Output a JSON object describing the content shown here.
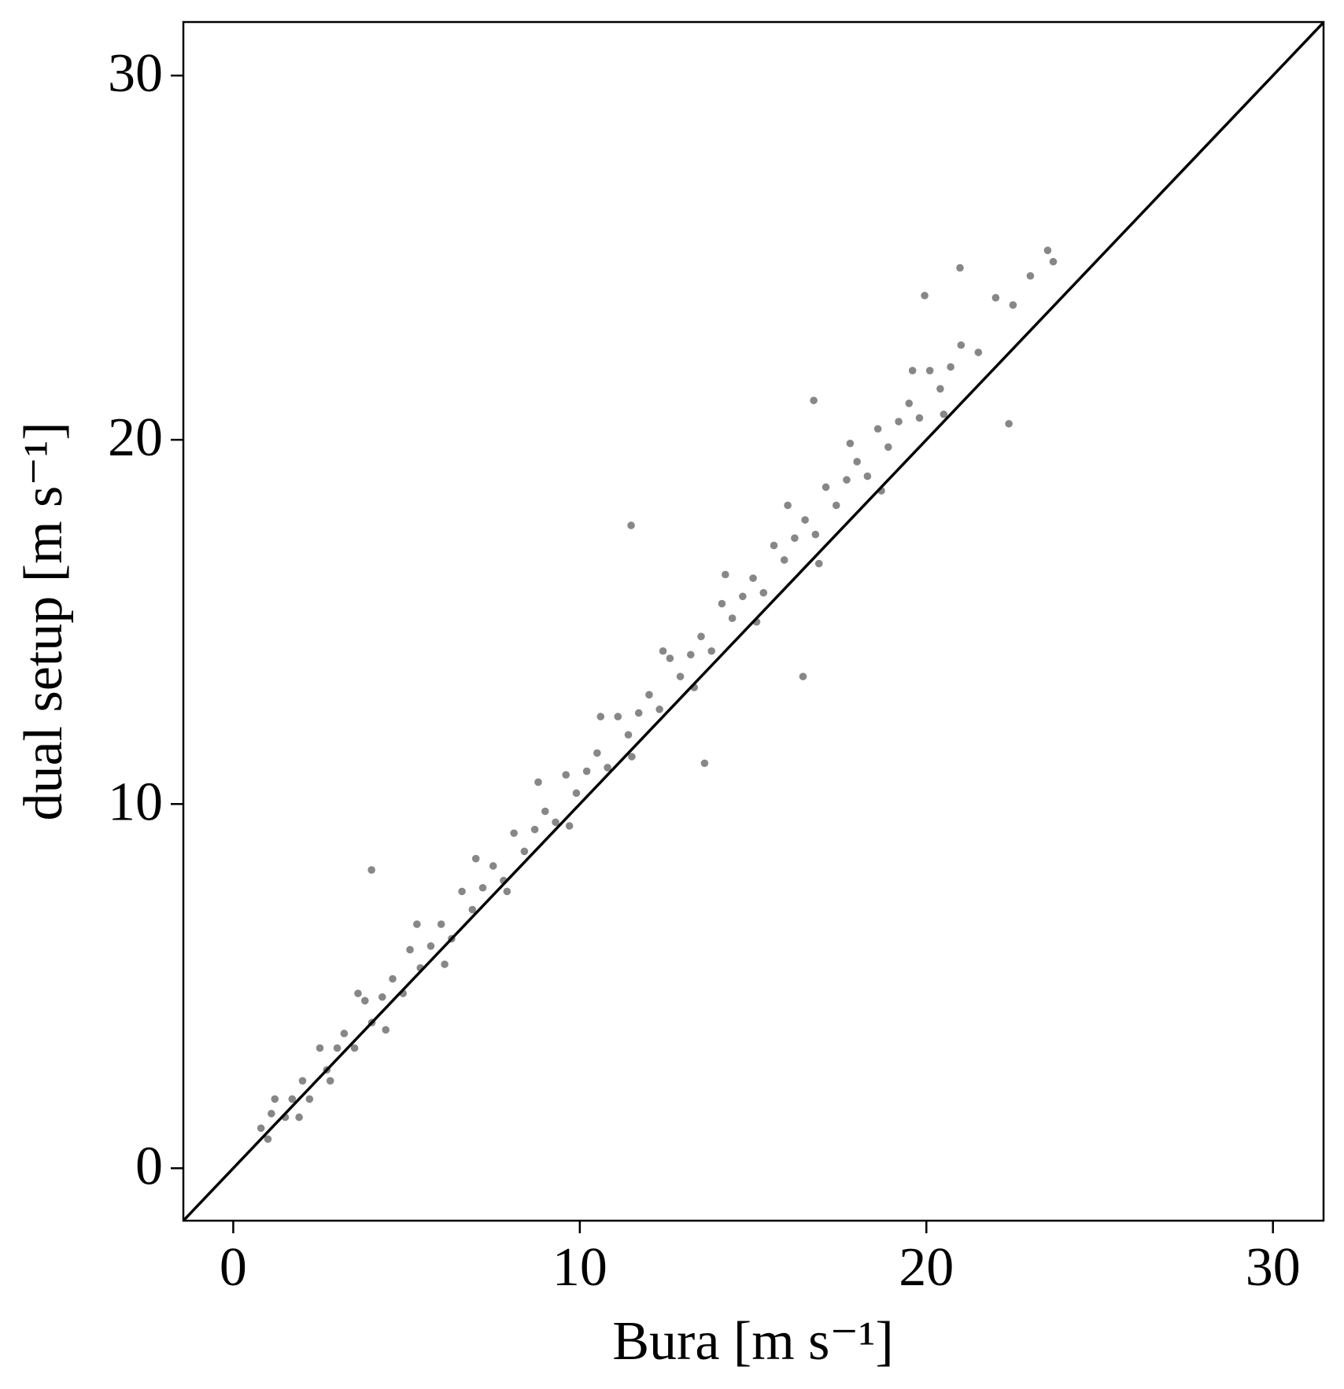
{
  "chart_data": {
    "type": "scatter",
    "x_label": "Bura [m s⁻¹]",
    "y_label": "dual setup [m s⁻¹]",
    "xlim": [
      -1.44,
      31.46
    ],
    "ylim": [
      -1.44,
      31.47
    ],
    "xticks": [
      0,
      10,
      20,
      30
    ],
    "yticks": [
      0,
      10,
      20,
      30
    ],
    "grid": false,
    "series": [
      {
        "color": "#878787",
        "x": [
          0.8,
          1.0,
          1.2,
          1.5,
          1.7,
          2.0,
          2.2,
          2.5,
          2.7,
          3.0,
          3.2,
          3.5,
          3.8,
          4.0,
          4.3,
          4.6,
          4.9,
          5.1,
          5.4,
          5.7,
          6.0,
          6.3,
          6.6,
          6.9,
          7.2,
          7.5,
          7.8,
          8.1,
          8.4,
          8.7,
          9.0,
          9.3,
          9.6,
          9.9,
          10.2,
          10.5,
          10.8,
          11.1,
          11.4,
          11.7,
          12.0,
          12.3,
          12.6,
          12.9,
          13.2,
          13.5,
          13.8,
          14.1,
          14.4,
          14.7,
          15.0,
          15.3,
          15.6,
          15.9,
          16.2,
          16.5,
          16.8,
          17.1,
          17.4,
          17.7,
          18.0,
          18.3,
          18.6,
          18.9,
          19.2,
          19.5,
          19.8,
          20.1,
          20.4,
          20.7,
          21.0,
          21.5,
          22.0,
          22.5,
          23.0,
          23.5,
          1.1,
          1.9,
          2.8,
          3.6,
          4.4,
          5.3,
          6.1,
          7.0,
          7.9,
          8.8,
          9.7,
          10.6,
          11.5,
          12.4,
          13.3,
          14.2,
          15.1,
          16.0,
          16.9,
          17.8,
          18.7,
          19.6,
          20.5,
          3.99,
          11.48,
          16.44,
          22.38,
          16.75,
          20.97,
          23.66,
          13.6,
          19.95
        ],
        "values": [
          1.1,
          0.8,
          1.9,
          1.4,
          1.9,
          2.4,
          1.9,
          3.3,
          2.7,
          3.3,
          3.7,
          3.3,
          4.6,
          4.0,
          4.7,
          5.2,
          4.8,
          6.0,
          5.5,
          6.1,
          6.7,
          6.3,
          7.6,
          7.1,
          7.7,
          8.3,
          7.9,
          9.2,
          8.7,
          9.3,
          9.8,
          9.5,
          10.8,
          10.3,
          10.9,
          11.4,
          11.0,
          12.4,
          11.9,
          12.5,
          13.0,
          12.6,
          14.0,
          13.5,
          14.1,
          14.6,
          14.2,
          15.5,
          15.1,
          15.7,
          16.2,
          15.8,
          17.1,
          16.7,
          17.3,
          17.8,
          17.4,
          18.7,
          18.2,
          18.9,
          19.4,
          19.0,
          20.3,
          19.8,
          20.5,
          21.0,
          20.6,
          21.9,
          21.4,
          22.0,
          22.6,
          22.4,
          23.9,
          23.7,
          24.5,
          25.2,
          1.5,
          1.4,
          2.4,
          4.8,
          3.8,
          6.7,
          5.6,
          8.5,
          7.6,
          10.6,
          9.4,
          12.4,
          11.3,
          14.2,
          13.2,
          16.3,
          15.0,
          18.2,
          16.6,
          19.9,
          18.6,
          21.9,
          20.7,
          8.19,
          17.65,
          13.5,
          20.44,
          21.08,
          24.72,
          24.89,
          11.12,
          23.96
        ]
      }
    ],
    "lines": [
      {
        "x": [
          -1.44,
          31.46
        ],
        "y": [
          -1.44,
          31.46
        ],
        "color": "#000000"
      }
    ]
  }
}
